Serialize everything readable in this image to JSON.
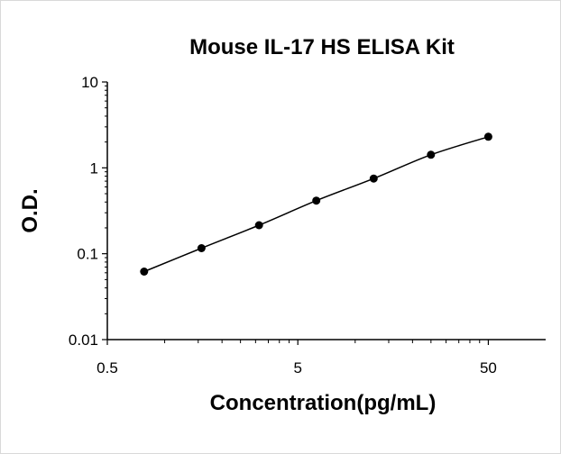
{
  "chart_data": {
    "type": "scatter",
    "title": "Mouse IL-17 HS ELISA Kit",
    "xlabel": "Concentration(pg/mL)",
    "ylabel": "O.D.",
    "x_scale": "log",
    "y_scale": "log",
    "xlim": [
      0.5,
      100
    ],
    "ylim": [
      0.01,
      10
    ],
    "x_tick_labels": [
      "0.5",
      "5",
      "50"
    ],
    "y_tick_labels": [
      "10",
      "1",
      "0.1",
      "0.01"
    ],
    "grid": false,
    "legend": "none",
    "fit_line": "smooth",
    "series": [
      {
        "x": [
          0.78,
          1.56,
          3.13,
          6.25,
          12.5,
          25,
          50
        ],
        "y": [
          0.062,
          0.116,
          0.215,
          0.415,
          0.75,
          1.42,
          2.3
        ]
      }
    ],
    "colors": {
      "marker": "#000000",
      "line": "#000000",
      "axis": "#000000"
    }
  }
}
